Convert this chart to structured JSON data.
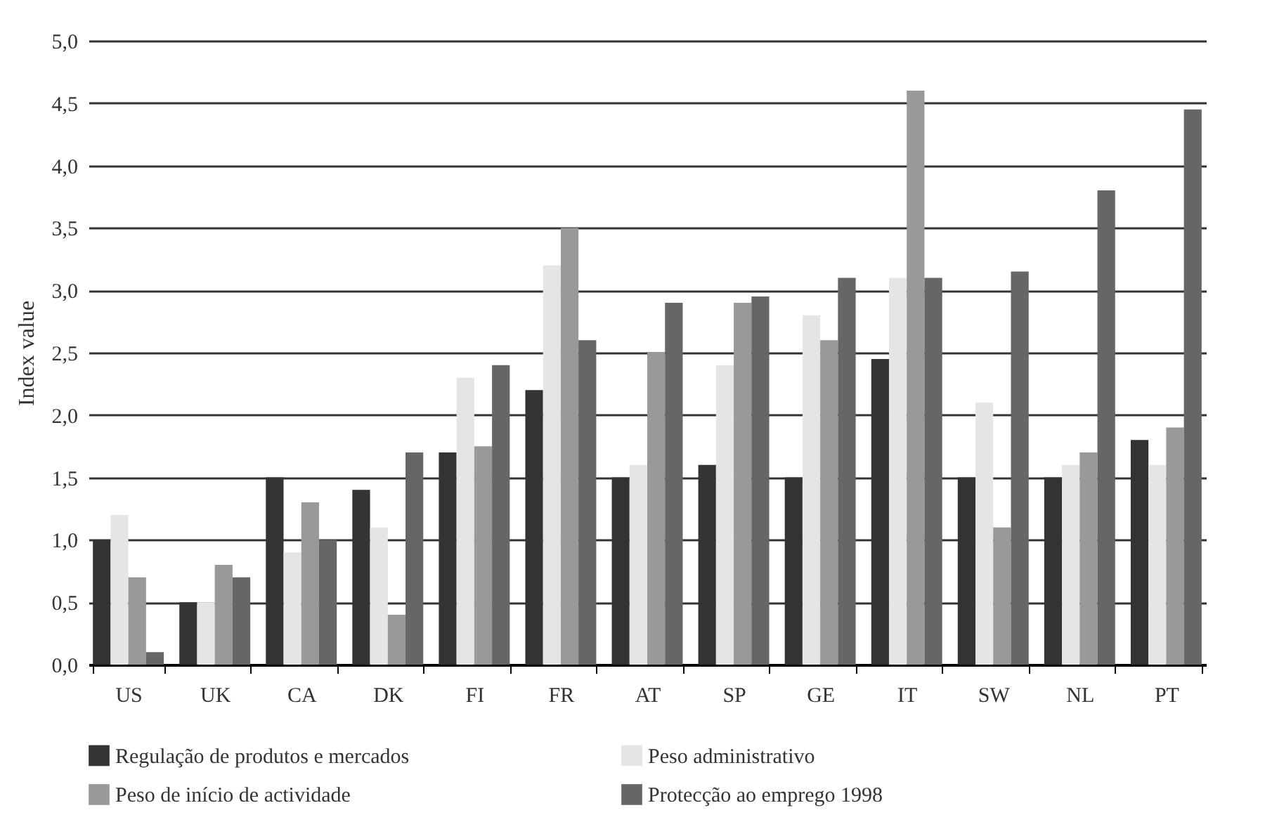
{
  "chart_data": {
    "type": "bar",
    "ylabel": "Index value",
    "categories": [
      "US",
      "UK",
      "CA",
      "DK",
      "FI",
      "FR",
      "AT",
      "SP",
      "GE",
      "IT",
      "SW",
      "NL",
      "PT"
    ],
    "series": [
      {
        "name": "Regulação de produtos e mercados",
        "color": "#333333",
        "values": [
          1.0,
          0.5,
          1.5,
          1.4,
          1.7,
          2.2,
          1.5,
          1.6,
          1.5,
          2.45,
          1.5,
          1.5,
          1.8
        ]
      },
      {
        "name": "Peso administrativo",
        "color": "#e5e5e5",
        "values": [
          1.2,
          0.5,
          0.9,
          1.1,
          2.3,
          3.2,
          1.6,
          2.4,
          2.8,
          3.1,
          2.1,
          1.6,
          1.6
        ]
      },
      {
        "name": "Peso de início de actividade",
        "color": "#999999",
        "values": [
          0.7,
          0.8,
          1.3,
          0.4,
          1.75,
          3.5,
          2.5,
          2.9,
          2.6,
          4.6,
          1.1,
          1.7,
          1.9
        ]
      },
      {
        "name": "Protecção ao emprego 1998",
        "color": "#666666",
        "values": [
          0.1,
          0.7,
          1.0,
          1.7,
          2.4,
          2.6,
          2.9,
          2.95,
          3.1,
          3.1,
          3.15,
          3.8,
          4.45
        ]
      }
    ],
    "ylim": [
      0,
      5
    ],
    "yticks": [
      {
        "value": 0,
        "label": "0,0"
      },
      {
        "value": 0.5,
        "label": "0,5"
      },
      {
        "value": 1,
        "label": "1,0"
      },
      {
        "value": 1.5,
        "label": "1,5"
      },
      {
        "value": 2,
        "label": "2,0"
      },
      {
        "value": 2.5,
        "label": "2,5"
      },
      {
        "value": 3,
        "label": "3,0"
      },
      {
        "value": 3.5,
        "label": "3,5"
      },
      {
        "value": 4,
        "label": "4,0"
      },
      {
        "value": 4.5,
        "label": "4,5"
      },
      {
        "value": 5,
        "label": "5,0"
      }
    ],
    "grid": "y",
    "legend": "bottom"
  }
}
